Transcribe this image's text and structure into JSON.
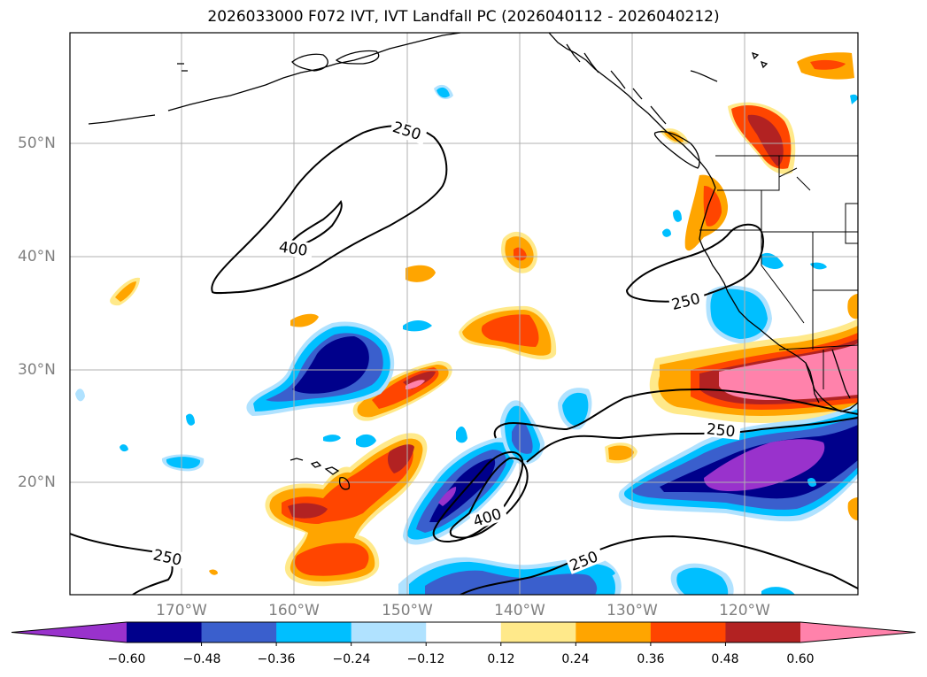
{
  "map": {
    "title": "2026033000 F072 IVT, IVT Landfall PC (2026040112 - 2026040212)",
    "lat_labels": [
      "50°N",
      "40°N",
      "30°N",
      "20°N"
    ],
    "lon_labels": [
      "170°W",
      "160°W",
      "150°W",
      "140°W",
      "130°W",
      "120°W"
    ],
    "contour_labels": [
      "250",
      "400",
      "250",
      "400",
      "250",
      "250",
      "250"
    ]
  },
  "colorbar": {
    "ticks": [
      "−0.60",
      "−0.48",
      "−0.36",
      "−0.24",
      "−0.12",
      "0.12",
      "0.24",
      "0.36",
      "0.48",
      "0.60"
    ],
    "colors": [
      "#9932CC",
      "#00008B",
      "#3A5FCD",
      "#00BFFF",
      "#B0E2FF",
      "#FFFFFF",
      "#FFE98A",
      "#FFA500",
      "#FF4500",
      "#B22222",
      "#FF82AB"
    ]
  }
}
